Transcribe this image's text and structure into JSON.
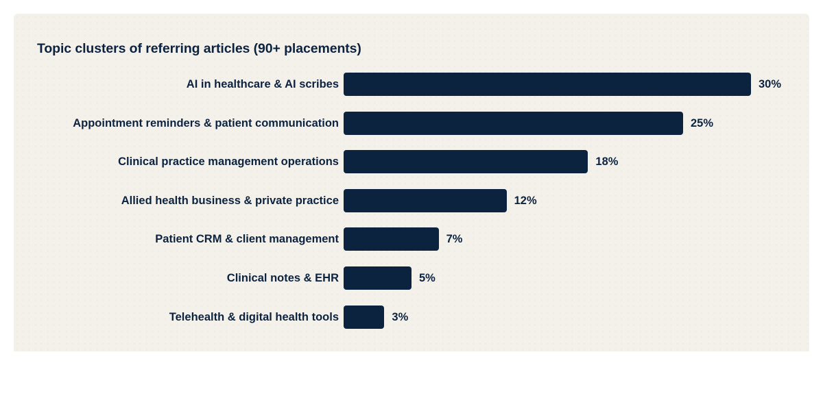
{
  "chart_data": {
    "type": "bar",
    "orientation": "horizontal",
    "title": "Topic clusters of referring articles (90+ placements)",
    "xlabel": "",
    "ylabel": "",
    "categories": [
      "AI in healthcare & AI scribes",
      "Appointment reminders & patient communication",
      "Clinical practice management operations",
      "Allied health business & private practice",
      "Patient CRM & client management",
      "Clinical notes & EHR",
      "Telehealth & digital health tools"
    ],
    "values": [
      30,
      25,
      18,
      12,
      7,
      5,
      3
    ],
    "value_labels": [
      "30%",
      "25%",
      "18%",
      "12%",
      "7%",
      "5%",
      "3%"
    ],
    "unit": "%",
    "xlim": [
      0,
      30
    ],
    "grid": false,
    "legend": null,
    "colors": {
      "bar": "#0c2340",
      "background": "#f4f1eb",
      "text": "#0c2340"
    }
  }
}
